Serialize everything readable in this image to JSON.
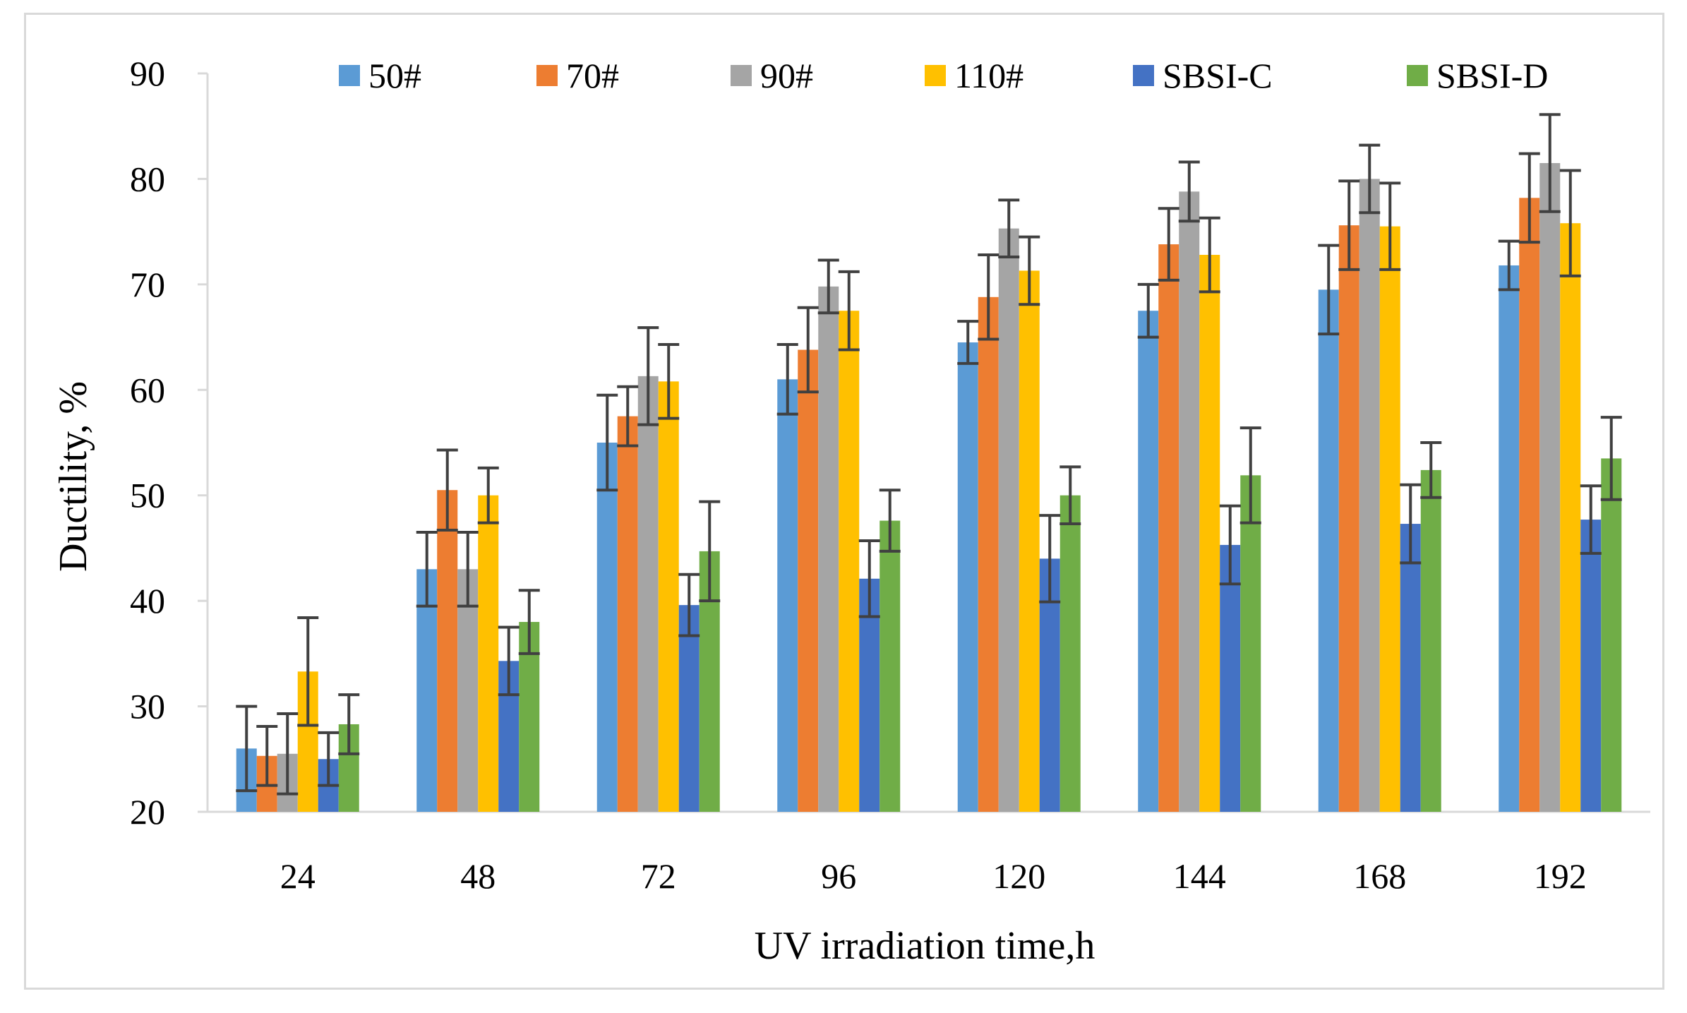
{
  "chart_data": {
    "type": "bar",
    "title": "",
    "xlabel": "UV irradiation time,h",
    "ylabel": "Ductility, %",
    "ylim": [
      20,
      90
    ],
    "yticks": [
      "20",
      "30",
      "40",
      "50",
      "60",
      "70",
      "80",
      "90"
    ],
    "categories": [
      "24",
      "48",
      "72",
      "96",
      "120",
      "144",
      "168",
      "192"
    ],
    "legend_position": "top",
    "grid": false,
    "series": [
      {
        "name": "50#",
        "color": "#5b9bd5",
        "values": [
          26,
          43,
          55,
          61,
          64.5,
          67.5,
          69.5,
          71.8
        ],
        "errors": [
          4,
          3.5,
          4.5,
          3.3,
          2,
          2.5,
          4.2,
          2.3
        ]
      },
      {
        "name": "70#",
        "color": "#ed7d31",
        "values": [
          25.3,
          50.5,
          57.5,
          63.8,
          68.8,
          73.8,
          75.6,
          78.2
        ],
        "errors": [
          2.8,
          3.8,
          2.8,
          4,
          4,
          3.4,
          4.2,
          4.2
        ]
      },
      {
        "name": "90#",
        "color": "#a5a5a5",
        "values": [
          25.5,
          43,
          61.3,
          69.8,
          75.3,
          78.8,
          80,
          81.5
        ],
        "errors": [
          3.8,
          3.5,
          4.6,
          2.5,
          2.7,
          2.8,
          3.2,
          4.6
        ]
      },
      {
        "name": "110#",
        "color": "#ffc000",
        "values": [
          33.3,
          50,
          60.8,
          67.5,
          71.3,
          72.8,
          75.5,
          75.8
        ],
        "errors": [
          5.1,
          2.6,
          3.5,
          3.7,
          3.2,
          3.5,
          4.1,
          5
        ]
      },
      {
        "name": "SBSI-C",
        "color": "#4472c4",
        "values": [
          25,
          34.3,
          39.6,
          42.1,
          44,
          45.3,
          47.3,
          47.7
        ],
        "errors": [
          2.5,
          3.2,
          2.9,
          3.6,
          4.1,
          3.7,
          3.7,
          3.2
        ]
      },
      {
        "name": "SBSI-D",
        "color": "#70ad47",
        "values": [
          28.3,
          38,
          44.7,
          47.6,
          50,
          51.9,
          52.4,
          53.5
        ],
        "errors": [
          2.8,
          3,
          4.7,
          2.9,
          2.7,
          4.5,
          2.6,
          3.9
        ]
      }
    ]
  }
}
